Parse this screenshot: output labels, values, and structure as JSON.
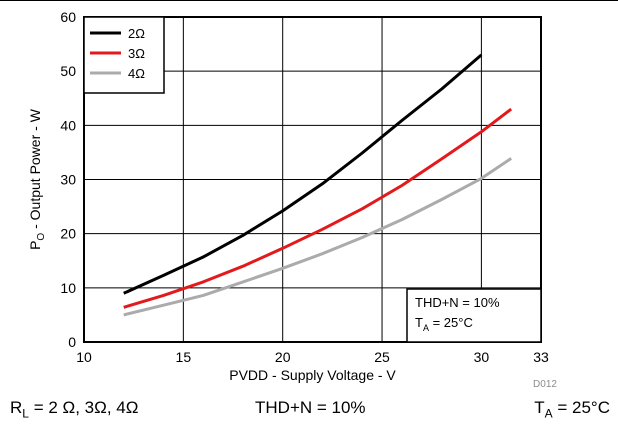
{
  "chart_data": {
    "type": "line",
    "xlabel": "PVDD - Supply Voltage - V",
    "ylabel": {
      "prefix": "P",
      "sub": "O",
      "rest": " - Output Power - W"
    },
    "xlim": [
      10,
      33
    ],
    "ylim": [
      0,
      60
    ],
    "xticks": [
      10,
      15,
      20,
      25,
      30,
      33
    ],
    "yticks": [
      0,
      10,
      20,
      30,
      40,
      50,
      60
    ],
    "grid": true,
    "legend_position": "top-left",
    "series": [
      {
        "name": "2Ω",
        "color": "#000000",
        "x": [
          12,
          14,
          16,
          18,
          20,
          22,
          24,
          26,
          28,
          30
        ],
        "y": [
          9,
          12.3,
          15.7,
          19.7,
          24.2,
          29.2,
          34.9,
          40.9,
          46.7,
          53
        ]
      },
      {
        "name": "3Ω",
        "color": "#e31a1c",
        "x": [
          12,
          14,
          16,
          18,
          20,
          22,
          24,
          26,
          28,
          30,
          31.5
        ],
        "y": [
          6.4,
          8.6,
          11.1,
          14,
          17.3,
          20.8,
          24.6,
          28.9,
          33.8,
          38.8,
          43
        ]
      },
      {
        "name": "4Ω",
        "color": "#ababab",
        "x": [
          12,
          14,
          16,
          18,
          20,
          22,
          24,
          26,
          28,
          30,
          31.5
        ],
        "y": [
          5,
          6.8,
          8.6,
          11.1,
          13.6,
          16.3,
          19.3,
          22.6,
          26.3,
          30.2,
          33.9
        ]
      }
    ],
    "annotation": {
      "line1": "THD+N = 10%",
      "line2": {
        "prefix": "T",
        "sub": "A",
        "rest": " = 25°C"
      }
    },
    "figure_id": "D012"
  },
  "footer": {
    "rl": {
      "prefix": "R",
      "sub": "L",
      "rest": " = 2 Ω, 3Ω, 4Ω"
    },
    "thd": "THD+N = 10%",
    "ta": {
      "prefix": "T",
      "sub": "A",
      "rest": " = 25°C"
    }
  }
}
